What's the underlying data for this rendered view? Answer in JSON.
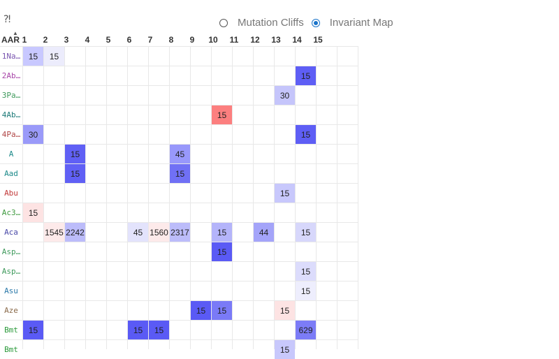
{
  "help_icon": "help-question-icon",
  "corner_label": "AAR",
  "view_toggle": {
    "options": [
      {
        "label": "Mutation Cliffs",
        "checked": false
      },
      {
        "label": "Invariant Map",
        "checked": true
      }
    ]
  },
  "columns": [
    "1",
    "2",
    "3",
    "4",
    "5",
    "6",
    "7",
    "8",
    "9",
    "10",
    "11",
    "12",
    "13",
    "14",
    "15"
  ],
  "rows": [
    {
      "label": "1Na…",
      "color": "#7a55b0",
      "cells": {
        "1": {
          "v": "15",
          "c": "#c8c8ff"
        },
        "2": {
          "v": "15",
          "c": "#ececfc"
        }
      }
    },
    {
      "label": "2Ab…",
      "color": "#a845a8",
      "cells": {
        "14": {
          "v": "15",
          "c": "#5e5ef5"
        }
      }
    },
    {
      "label": "3Pa…",
      "color": "#3f9a5c",
      "cells": {
        "13": {
          "v": "30",
          "c": "#c5c5fb"
        }
      }
    },
    {
      "label": "4Ab…",
      "color": "#1d7a78",
      "cells": {
        "10": {
          "v": "15",
          "c": "#fc7f7f"
        }
      }
    },
    {
      "label": "4Pa…",
      "color": "#b04545",
      "cells": {
        "1": {
          "v": "30",
          "c": "#9a9af9"
        },
        "14": {
          "v": "15",
          "c": "#5e5ef5"
        }
      }
    },
    {
      "label": "A",
      "color": "#1d8a8a",
      "cells": {
        "3": {
          "v": "15",
          "c": "#6060f5"
        },
        "8": {
          "v": "45",
          "c": "#9898fb"
        }
      }
    },
    {
      "label": "Aad",
      "color": "#1d8a8a",
      "cells": {
        "3": {
          "v": "15",
          "c": "#6060f5"
        },
        "8": {
          "v": "15",
          "c": "#7070f5"
        }
      }
    },
    {
      "label": "Abu",
      "color": "#c23a3a",
      "cells": {
        "13": {
          "v": "15",
          "c": "#c8c8fc"
        }
      }
    },
    {
      "label": "Ac3…",
      "color": "#3f9a3f",
      "cells": {
        "1": {
          "v": "15",
          "c": "#fde3e3"
        }
      }
    },
    {
      "label": "Aca",
      "color": "#4a4aa8",
      "cells": {
        "2": {
          "v": "1545",
          "c": "#fdeaea"
        },
        "3": {
          "v": "2242",
          "c": "#bcbcfa"
        },
        "6": {
          "v": "45",
          "c": "#e3e3fc"
        },
        "7": {
          "v": "1560",
          "c": "#fdeaea"
        },
        "8": {
          "v": "2317",
          "c": "#bcbcfa"
        },
        "10": {
          "v": "15",
          "c": "#b4b4fa"
        },
        "12": {
          "v": "44",
          "c": "#a4a4f9"
        },
        "14": {
          "v": "15",
          "c": "#d7d7fb"
        }
      }
    },
    {
      "label": "Asp…",
      "color": "#3f9a5c",
      "cells": {
        "10": {
          "v": "15",
          "c": "#5a5af5"
        }
      }
    },
    {
      "label": "Asp…",
      "color": "#3f9a5c",
      "cells": {
        "14": {
          "v": "15",
          "c": "#dcdcfc"
        }
      }
    },
    {
      "label": "Asu",
      "color": "#2a78a8",
      "cells": {
        "14": {
          "v": "15",
          "c": "#eeeefd"
        }
      }
    },
    {
      "label": "Aze",
      "color": "#8a6a4a",
      "cells": {
        "9": {
          "v": "15",
          "c": "#5a5af5"
        },
        "10": {
          "v": "15",
          "c": "#7a7af7"
        },
        "13": {
          "v": "15",
          "c": "#fde3e3"
        }
      }
    },
    {
      "label": "Bmt",
      "color": "#2a9a3a",
      "cells": {
        "1": {
          "v": "15",
          "c": "#5a5af5"
        },
        "6": {
          "v": "15",
          "c": "#5a5af5"
        },
        "7": {
          "v": "15",
          "c": "#5a5af5"
        },
        "14": {
          "v": "629",
          "c": "#7c7cf7"
        }
      }
    },
    {
      "label": "Bmt",
      "color": "#2a9a3a",
      "cells": {
        "13": {
          "v": "15",
          "c": "#c8c8fc"
        }
      }
    }
  ]
}
